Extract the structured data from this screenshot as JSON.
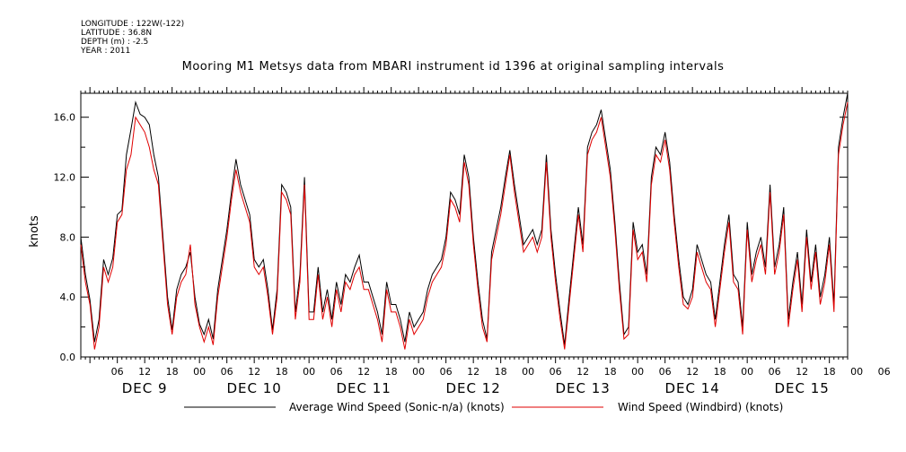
{
  "meta": {
    "longitude": "LONGITUDE : 122W(-122)",
    "latitude": "LATITUDE : 36.8N",
    "depth": "DEPTH (m) : -2.5",
    "year": "YEAR : 2011"
  },
  "chart_data": {
    "type": "line",
    "title": "Mooring M1 Metsys data from MBARI instrument id 1396 at original sampling intervals",
    "ylabel": "knots",
    "xlabel": "",
    "ylim": [
      0,
      17.6
    ],
    "yticks": [
      "0.0",
      "4.0",
      "8.0",
      "12.0",
      "16.0"
    ],
    "xrange_hours": [
      -2,
      166
    ],
    "hour_tick_labels": [
      "06",
      "12",
      "18",
      "00",
      "06",
      "12",
      "18",
      "00",
      "06",
      "12",
      "18",
      "00",
      "06",
      "12",
      "18",
      "00",
      "06",
      "12",
      "18",
      "00",
      "06",
      "12",
      "18",
      "00",
      "06",
      "12",
      "18",
      "00",
      "06",
      "12",
      "18",
      "00"
    ],
    "day_labels": [
      "DEC  9",
      "DEC 10",
      "DEC 11",
      "DEC 12",
      "DEC 13",
      "DEC 14",
      "DEC 15"
    ],
    "grid": false,
    "legend_position": "bottom",
    "series": [
      {
        "name": "Average Wind Speed (Sonic-n/a) (knots)",
        "color": "#000000",
        "x": [
          -2,
          -1,
          0,
          1,
          2,
          3,
          4,
          5,
          6,
          7,
          8,
          9,
          10,
          11,
          12,
          13,
          14,
          15,
          16,
          17,
          18,
          19,
          20,
          21,
          22,
          23,
          24,
          25,
          26,
          27,
          28,
          29,
          30,
          31,
          32,
          33,
          34,
          35,
          36,
          37,
          38,
          39,
          40,
          41,
          42,
          43,
          44,
          45,
          46,
          47,
          48,
          49,
          50,
          51,
          52,
          53,
          54,
          55,
          56,
          57,
          58,
          59,
          60,
          61,
          62,
          63,
          64,
          65,
          66,
          67,
          68,
          69,
          70,
          71,
          72,
          73,
          74,
          75,
          76,
          77,
          78,
          79,
          80,
          81,
          82,
          83,
          84,
          85,
          86,
          87,
          88,
          89,
          90,
          91,
          92,
          93,
          94,
          95,
          96,
          97,
          98,
          99,
          100,
          101,
          102,
          103,
          104,
          105,
          106,
          107,
          108,
          109,
          110,
          111,
          112,
          113,
          114,
          115,
          116,
          117,
          118,
          119,
          120,
          121,
          122,
          123,
          124,
          125,
          126,
          127,
          128,
          129,
          130,
          131,
          132,
          133,
          134,
          135,
          136,
          137,
          138,
          139,
          140,
          141,
          142,
          143,
          144,
          145,
          146,
          147,
          148,
          149,
          150,
          151,
          152,
          153,
          154,
          155,
          156,
          157,
          158,
          159,
          160,
          161,
          162,
          163,
          164,
          165,
          166
        ],
        "values": [
          8.0,
          5.5,
          3.8,
          1.0,
          2.5,
          6.5,
          5.5,
          6.6,
          9.5,
          9.8,
          13.5,
          15.2,
          17.0,
          16.2,
          16.0,
          15.5,
          13.5,
          12.0,
          8.0,
          4.0,
          1.8,
          4.5,
          5.5,
          6.0,
          7.0,
          4.0,
          2.2,
          1.5,
          2.5,
          1.2,
          4.5,
          6.5,
          8.5,
          11.0,
          13.2,
          11.5,
          10.5,
          9.5,
          6.5,
          6.0,
          6.5,
          4.5,
          1.8,
          4.5,
          11.5,
          11.0,
          10.0,
          3.0,
          5.5,
          12.0,
          3.0,
          3.0,
          6.0,
          3.0,
          4.5,
          2.5,
          5.0,
          3.5,
          5.5,
          5.0,
          6.0,
          6.8,
          5.0,
          5.0,
          4.0,
          3.0,
          1.5,
          5.0,
          3.5,
          3.5,
          2.5,
          1.0,
          3.0,
          2.0,
          2.5,
          3.0,
          4.5,
          5.5,
          6.0,
          6.5,
          8.0,
          11.0,
          10.5,
          9.5,
          13.5,
          12.0,
          8.0,
          5.0,
          2.5,
          1.2,
          7.0,
          8.5,
          10.0,
          12.0,
          13.8,
          11.5,
          9.5,
          7.5,
          8.0,
          8.5,
          7.5,
          8.5,
          13.5,
          8.5,
          5.5,
          3.0,
          0.8,
          4.0,
          7.0,
          10.0,
          7.5,
          14.0,
          15.0,
          15.5,
          16.5,
          14.5,
          12.5,
          9.0,
          5.0,
          1.5,
          2.0,
          9.0,
          7.0,
          7.5,
          5.5,
          12.0,
          14.0,
          13.5,
          15.0,
          13.0,
          9.5,
          6.5,
          4.0,
          3.5,
          4.5,
          7.5,
          6.5,
          5.5,
          5.0,
          2.5,
          5.0,
          7.5,
          9.5,
          5.5,
          5.0,
          2.0,
          9.0,
          5.5,
          7.0,
          8.0,
          6.0,
          11.5,
          6.0,
          7.5,
          10.0,
          2.5,
          5.0,
          7.0,
          3.5,
          8.5,
          5.0,
          7.5,
          4.0,
          5.5,
          8.0,
          3.5,
          14.0,
          16.0,
          17.6
        ]
      },
      {
        "name": "Wind Speed (Windbird) (knots)",
        "color": "#e00000",
        "x": [
          -2,
          -1,
          0,
          1,
          2,
          3,
          4,
          5,
          6,
          7,
          8,
          9,
          10,
          11,
          12,
          13,
          14,
          15,
          16,
          17,
          18,
          19,
          20,
          21,
          22,
          23,
          24,
          25,
          26,
          27,
          28,
          29,
          30,
          31,
          32,
          33,
          34,
          35,
          36,
          37,
          38,
          39,
          40,
          41,
          42,
          43,
          44,
          45,
          46,
          47,
          48,
          49,
          50,
          51,
          52,
          53,
          54,
          55,
          56,
          57,
          58,
          59,
          60,
          61,
          62,
          63,
          64,
          65,
          66,
          67,
          68,
          69,
          70,
          71,
          72,
          73,
          74,
          75,
          76,
          77,
          78,
          79,
          80,
          81,
          82,
          83,
          84,
          85,
          86,
          87,
          88,
          89,
          90,
          91,
          92,
          93,
          94,
          95,
          96,
          97,
          98,
          99,
          100,
          101,
          102,
          103,
          104,
          105,
          106,
          107,
          108,
          109,
          110,
          111,
          112,
          113,
          114,
          115,
          116,
          117,
          118,
          119,
          120,
          121,
          122,
          123,
          124,
          125,
          126,
          127,
          128,
          129,
          130,
          131,
          132,
          133,
          134,
          135,
          136,
          137,
          138,
          139,
          140,
          141,
          142,
          143,
          144,
          145,
          146,
          147,
          148,
          149,
          150,
          151,
          152,
          153,
          154,
          155,
          156,
          157,
          158,
          159,
          160,
          161,
          162,
          163,
          164,
          165,
          166
        ],
        "values": [
          7.5,
          5.0,
          3.5,
          0.5,
          2.0,
          6.0,
          5.0,
          6.0,
          9.0,
          9.5,
          12.5,
          13.5,
          16.0,
          15.5,
          15.0,
          14.0,
          12.5,
          11.5,
          7.5,
          3.5,
          1.5,
          4.0,
          5.0,
          5.5,
          7.5,
          3.5,
          2.0,
          1.0,
          2.0,
          0.8,
          4.0,
          6.0,
          8.0,
          10.5,
          12.5,
          11.0,
          10.0,
          9.0,
          6.0,
          5.5,
          6.0,
          4.0,
          1.5,
          4.0,
          11.0,
          10.5,
          9.5,
          2.5,
          5.0,
          11.5,
          2.5,
          2.5,
          5.5,
          2.5,
          4.0,
          2.0,
          4.5,
          3.0,
          5.0,
          4.5,
          5.5,
          6.0,
          4.5,
          4.5,
          3.5,
          2.5,
          1.0,
          4.5,
          3.0,
          3.0,
          2.0,
          0.5,
          2.5,
          1.5,
          2.0,
          2.5,
          4.0,
          5.0,
          5.5,
          6.0,
          7.5,
          10.5,
          10.0,
          9.0,
          13.0,
          11.5,
          7.5,
          4.5,
          2.0,
          1.0,
          6.5,
          8.0,
          9.5,
          11.5,
          13.5,
          11.0,
          9.0,
          7.0,
          7.5,
          8.0,
          7.0,
          8.0,
          13.0,
          8.0,
          5.0,
          2.5,
          0.5,
          3.5,
          6.5,
          9.5,
          7.0,
          13.5,
          14.5,
          15.0,
          16.0,
          14.0,
          12.0,
          8.5,
          4.5,
          1.2,
          1.5,
          8.5,
          6.5,
          7.0,
          5.0,
          11.5,
          13.5,
          13.0,
          14.5,
          12.5,
          9.0,
          6.0,
          3.5,
          3.2,
          4.0,
          7.0,
          6.0,
          5.0,
          4.5,
          2.0,
          4.5,
          7.0,
          9.0,
          5.0,
          4.5,
          1.5,
          8.5,
          5.0,
          6.5,
          7.5,
          5.5,
          11.0,
          5.5,
          7.0,
          9.5,
          2.0,
          4.5,
          6.5,
          3.0,
          8.0,
          4.5,
          7.0,
          3.5,
          5.0,
          7.5,
          3.0,
          13.5,
          15.5,
          17.0
        ]
      }
    ]
  }
}
